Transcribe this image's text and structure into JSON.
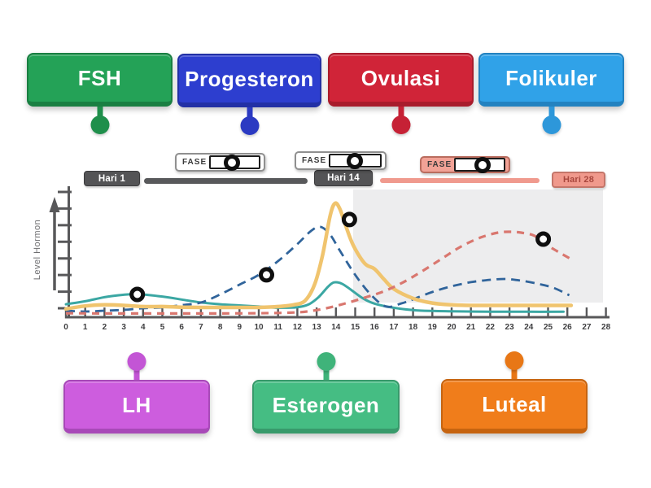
{
  "activity": {
    "top_labels": [
      {
        "id": "fsh",
        "text": "FSH",
        "color": "#24a257",
        "dark": "#1a7f42",
        "pin": "#1f8f4b"
      },
      {
        "id": "progesteron",
        "text": "Progesteron",
        "color": "#2d3ecf",
        "dark": "#2230a5",
        "pin": "#2b3ac2"
      },
      {
        "id": "ovulasi",
        "text": "Ovulasi",
        "color": "#d02438",
        "dark": "#a81c2c",
        "pin": "#c62135"
      },
      {
        "id": "folikuler",
        "text": "Folikuler",
        "color": "#30a2e8",
        "dark": "#2382c0",
        "pin": "#2d97da"
      }
    ],
    "bottom_labels": [
      {
        "id": "lh",
        "text": "LH",
        "color": "#cd5dde",
        "dark": "#a849b8",
        "pin": "#c355d5"
      },
      {
        "id": "esterogen",
        "text": "Esterogen",
        "color": "#45bd83",
        "dark": "#389a6b",
        "pin": "#3fb37a"
      },
      {
        "id": "luteal",
        "text": "Luteal",
        "color": "#f07d1b",
        "dark": "#c66410",
        "pin": "#e87716"
      }
    ]
  },
  "diagram": {
    "y_axis_label": "Level Hormon",
    "day_markers": [
      {
        "text": "Hari 1",
        "style": "dark"
      },
      {
        "text": "Hari 14",
        "style": "dark"
      },
      {
        "text": "Hari 28",
        "style": "pink"
      }
    ],
    "phase_boxes": [
      {
        "label": "FASE"
      },
      {
        "label": "FASE"
      },
      {
        "label": "FASE"
      }
    ],
    "x_ticks": [
      "0",
      "1",
      "2",
      "3",
      "4",
      "5",
      "6",
      "7",
      "8",
      "9",
      "10",
      "11",
      "12",
      "13",
      "14",
      "15",
      "16",
      "17",
      "18",
      "19",
      "20",
      "21",
      "22",
      "23",
      "24",
      "25",
      "26",
      "27",
      "28"
    ],
    "colors": {
      "axis": "#58585a",
      "dark_bar": "#58595b",
      "pink_bar": "#f09a8e",
      "shaded_region": "#ededee"
    }
  },
  "chart_data": {
    "type": "line",
    "title": "",
    "xlabel": "",
    "ylabel": "Level Hormon",
    "x_range": [
      0,
      28
    ],
    "y_range": [
      0,
      100
    ],
    "grid": false,
    "legend": "none",
    "series": [
      {
        "name": "solid_teal_curve",
        "color": "#3ba7a3",
        "style": "solid",
        "points": [
          [
            0,
            11
          ],
          [
            1,
            13.5
          ],
          [
            2,
            17
          ],
          [
            3,
            19
          ],
          [
            3.8,
            19.5
          ],
          [
            5,
            17.5
          ],
          [
            6,
            15
          ],
          [
            7,
            12.5
          ],
          [
            8,
            11
          ],
          [
            9,
            10
          ],
          [
            10,
            9
          ],
          [
            11,
            8
          ],
          [
            12,
            8.5
          ],
          [
            12.6,
            11
          ],
          [
            13.1,
            17
          ],
          [
            13.6,
            26
          ],
          [
            13.9,
            29.5
          ],
          [
            14.3,
            28.5
          ],
          [
            14.8,
            23
          ],
          [
            15.4,
            16
          ],
          [
            16,
            11.5
          ],
          [
            17,
            8
          ],
          [
            18,
            6
          ],
          [
            19,
            5.3
          ],
          [
            20,
            5
          ],
          [
            22,
            4.7
          ],
          [
            24,
            4.6
          ],
          [
            25.8,
            4.6
          ]
        ]
      },
      {
        "name": "dashed_blue_curve",
        "color": "#30649b",
        "style": "dashed",
        "points": [
          [
            0,
            5.5
          ],
          [
            1,
            4.8
          ],
          [
            2,
            5.5
          ],
          [
            3,
            6.2
          ],
          [
            4,
            7.6
          ],
          [
            5,
            8.3
          ],
          [
            6,
            10.3
          ],
          [
            7,
            12.4
          ],
          [
            8,
            19.3
          ],
          [
            9,
            27.6
          ],
          [
            10,
            35.9
          ],
          [
            11,
            47.6
          ],
          [
            12,
            62
          ],
          [
            12.7,
            73
          ],
          [
            13.2,
            76.6
          ],
          [
            13.7,
            70
          ],
          [
            14.2,
            56.6
          ],
          [
            15,
            35.9
          ],
          [
            15.8,
            19.3
          ],
          [
            16.6,
            9
          ],
          [
            17.4,
            11.7
          ],
          [
            18,
            15.2
          ],
          [
            19,
            21.4
          ],
          [
            20,
            26.2
          ],
          [
            21,
            29.7
          ],
          [
            22,
            31.7
          ],
          [
            22.8,
            32.4
          ],
          [
            23.6,
            31
          ],
          [
            24.5,
            28.3
          ],
          [
            25.3,
            24.8
          ],
          [
            26.1,
            18.6
          ]
        ]
      },
      {
        "name": "solid_yellow_curve",
        "color": "#f0c46e",
        "style": "solid",
        "points": [
          [
            0,
            7
          ],
          [
            1,
            9.5
          ],
          [
            2,
            10.5
          ],
          [
            3,
            10
          ],
          [
            4,
            9
          ],
          [
            5,
            9
          ],
          [
            6,
            8.5
          ],
          [
            7,
            8.3
          ],
          [
            8,
            8.3
          ],
          [
            9,
            8.3
          ],
          [
            10,
            8.3
          ],
          [
            11,
            9
          ],
          [
            11.8,
            10.5
          ],
          [
            12.4,
            14
          ],
          [
            12.9,
            28
          ],
          [
            13.3,
            52
          ],
          [
            13.7,
            86
          ],
          [
            13.95,
            96.5
          ],
          [
            14.2,
            92
          ],
          [
            14.5,
            78
          ],
          [
            14.9,
            61
          ],
          [
            15.5,
            45.5
          ],
          [
            16,
            41
          ],
          [
            16.5,
            32
          ],
          [
            17,
            24
          ],
          [
            18,
            16
          ],
          [
            19,
            12
          ],
          [
            20,
            10.5
          ],
          [
            21,
            10
          ],
          [
            22,
            10
          ],
          [
            23,
            10
          ],
          [
            24,
            10
          ],
          [
            25,
            10
          ],
          [
            26.2,
            10
          ]
        ]
      },
      {
        "name": "dashed_red_curve",
        "color": "#d9776f",
        "style": "dashed",
        "points": [
          [
            0,
            3.4
          ],
          [
            2,
            3.2
          ],
          [
            4,
            3.2
          ],
          [
            6,
            3.2
          ],
          [
            8,
            3.2
          ],
          [
            10,
            3.4
          ],
          [
            11.5,
            3.8
          ],
          [
            12.5,
            4.8
          ],
          [
            13.5,
            7.6
          ],
          [
            14.5,
            11.7
          ],
          [
            15.5,
            16.6
          ],
          [
            16.5,
            22
          ],
          [
            17.5,
            29.7
          ],
          [
            18.5,
            39.3
          ],
          [
            19.5,
            49.7
          ],
          [
            20.5,
            60
          ],
          [
            21.5,
            67.6
          ],
          [
            22.4,
            71.7
          ],
          [
            23,
            72.4
          ],
          [
            23.6,
            71.7
          ],
          [
            24.3,
            69
          ],
          [
            25,
            60.7
          ],
          [
            25.7,
            53.8
          ],
          [
            26.3,
            48.3
          ]
        ]
      }
    ],
    "drop_zones": [
      [
        3.7,
        19.3
      ],
      [
        10.4,
        35.9
      ],
      [
        14.7,
        82.8
      ],
      [
        24.75,
        66.2
      ]
    ]
  }
}
